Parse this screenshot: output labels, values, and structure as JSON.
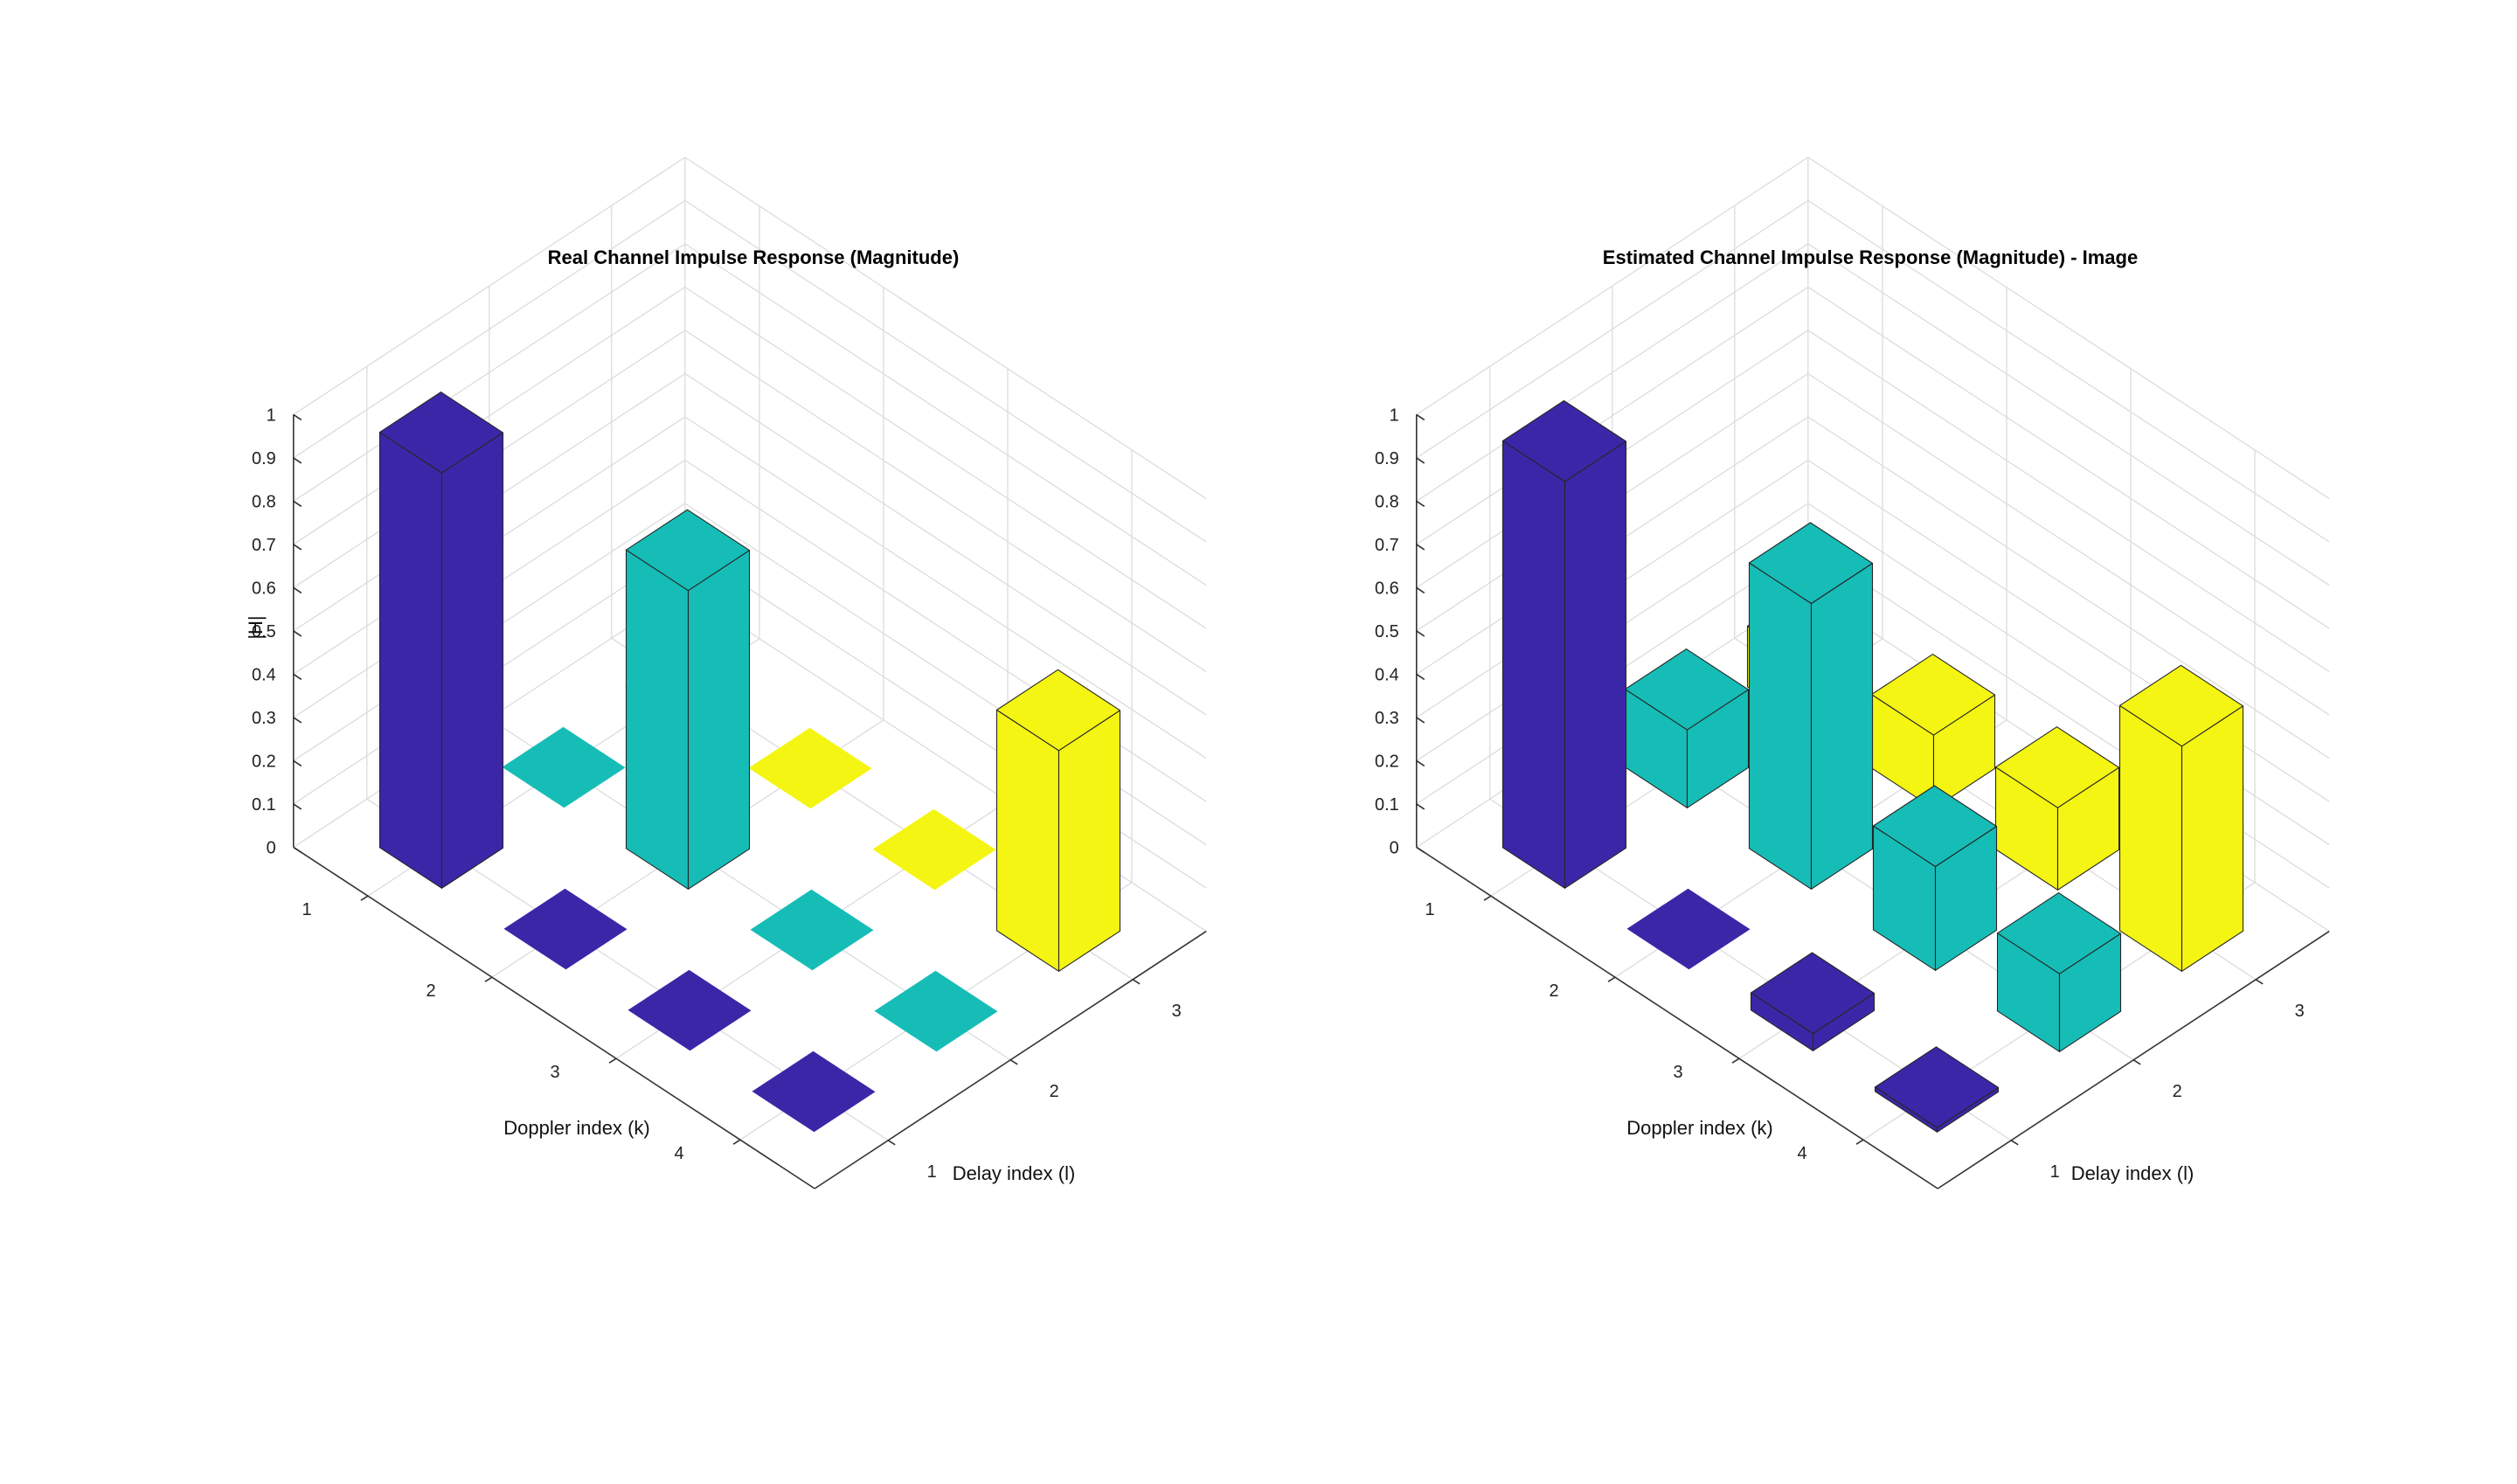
{
  "chart_data": [
    {
      "type": "bar3d",
      "title": "Real Channel Impulse Response (Magnitude)",
      "xlabel": "Delay index (l)",
      "ylabel": "Doppler index (k)",
      "zlabel": "|H|",
      "delay_ticks": [
        "1",
        "2",
        "3"
      ],
      "doppler_ticks": [
        "1",
        "2",
        "3",
        "4"
      ],
      "z_ticks": [
        "0",
        "0.1",
        "0.2",
        "0.3",
        "0.4",
        "0.5",
        "0.6",
        "0.7",
        "0.8",
        "0.9",
        "1"
      ],
      "zlim": [
        0,
        1
      ],
      "grid": true,
      "series_colors": [
        "#3c26a8",
        "#16bdb7",
        "#f5f514"
      ],
      "values": [
        [
          0.96,
          0.0,
          0.0,
          0.0
        ],
        [
          0.0,
          0.69,
          0.0,
          0.0
        ],
        [
          0.0,
          0.0,
          0.0,
          0.51
        ]
      ]
    },
    {
      "type": "bar3d",
      "title": "Estimated Channel Impulse Response (Magnitude) - Image",
      "xlabel": "Delay index (l)",
      "ylabel": "Doppler index (k)",
      "zlabel": "",
      "delay_ticks": [
        "1",
        "2",
        "3"
      ],
      "doppler_ticks": [
        "1",
        "2",
        "3",
        "4"
      ],
      "z_ticks": [
        "0",
        "0.1",
        "0.2",
        "0.3",
        "0.4",
        "0.5",
        "0.6",
        "0.7",
        "0.8",
        "0.9",
        "1"
      ],
      "zlim": [
        0,
        1
      ],
      "grid": true,
      "series_colors": [
        "#3c26a8",
        "#16bdb7",
        "#f5f514"
      ],
      "values": [
        [
          0.94,
          0.0,
          0.04,
          0.01
        ],
        [
          0.18,
          0.66,
          0.24,
          0.18
        ],
        [
          0.14,
          0.17,
          0.19,
          0.52
        ]
      ]
    }
  ]
}
